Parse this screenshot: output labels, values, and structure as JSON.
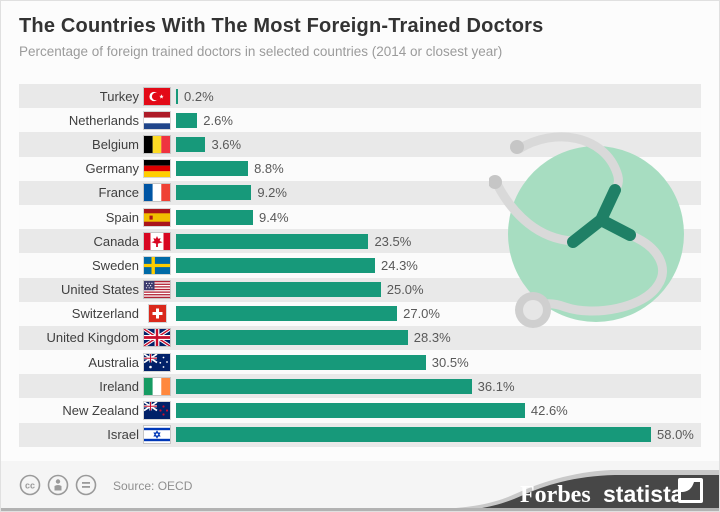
{
  "header": {
    "title": "The Countries With The Most Foreign-Trained Doctors",
    "subtitle": "Percentage of foreign trained doctors in selected countries (2014 or closest year)"
  },
  "chart_data": {
    "type": "bar",
    "orientation": "horizontal",
    "title": "The Countries With The Most Foreign-Trained Doctors",
    "subtitle": "Percentage of foreign trained doctors in selected countries (2014 or closest year)",
    "unit": "%",
    "xlim": [
      0,
      58
    ],
    "grid": false,
    "legend": false,
    "categories": [
      "Turkey",
      "Netherlands",
      "Belgium",
      "Germany",
      "France",
      "Spain",
      "Canada",
      "Sweden",
      "United States",
      "Switzerland",
      "United Kingdom",
      "Australia",
      "Ireland",
      "New Zealand",
      "Israel"
    ],
    "values": [
      0.2,
      2.6,
      3.6,
      8.8,
      9.2,
      9.4,
      23.5,
      24.3,
      25.0,
      27.0,
      28.3,
      30.5,
      36.1,
      42.6,
      58.0
    ],
    "labels": [
      "0.2%",
      "2.6%",
      "3.6%",
      "8.8%",
      "9.2%",
      "9.4%",
      "23.5%",
      "24.3%",
      "25.0%",
      "27.0%",
      "28.3%",
      "30.5%",
      "36.1%",
      "42.6%",
      "58.0%"
    ],
    "flags": [
      "turkey-flag",
      "netherlands-flag",
      "belgium-flag",
      "germany-flag",
      "france-flag",
      "spain-flag",
      "canada-flag",
      "sweden-flag",
      "united-states-flag",
      "switzerland-flag",
      "united-kingdom-flag",
      "australia-flag",
      "ireland-flag",
      "new-zealand-flag",
      "israel-flag"
    ]
  },
  "colors": {
    "bar_green": "#17997a",
    "dark_green": "#1f8066",
    "circle_green": "#a7ddc1",
    "row_alt": "#e9e9e9",
    "banner_dark": "#474747",
    "title_text": "#333333",
    "subtitle_text": "#9b9b9b"
  },
  "illustration": {
    "name": "stethoscope-illustration"
  },
  "footer": {
    "source": "Source: OECD",
    "license_icons": [
      "cc-icon",
      "attribution-icon",
      "equal-icon"
    ],
    "brand_forbes": "Forbes",
    "brand_statista": "statista"
  }
}
